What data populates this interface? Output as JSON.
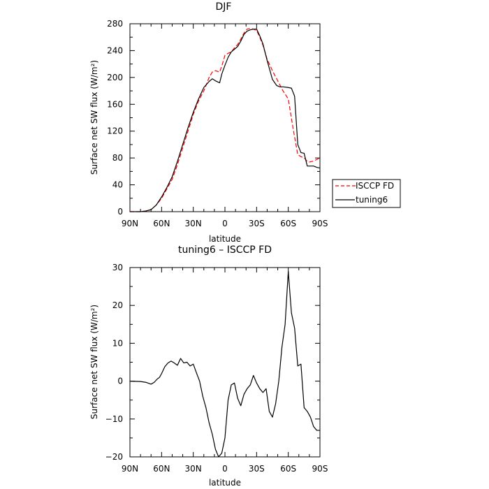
{
  "chart_data": [
    {
      "type": "line",
      "title": "DJF",
      "xlabel": "latitude",
      "ylabel": "Surface net SW flux (W/m²)",
      "xlim": [
        90,
        -90
      ],
      "ylim": [
        0,
        280
      ],
      "x_ticks": [
        90,
        60,
        30,
        0,
        -30,
        -60,
        -90
      ],
      "x_tick_labels": [
        "90N",
        "60N",
        "30N",
        "0",
        "30S",
        "60S",
        "90S"
      ],
      "y_ticks": [
        0,
        40,
        80,
        120,
        160,
        200,
        240,
        280
      ],
      "y_tick_labels": [
        "0",
        "40",
        "80",
        "120",
        "160",
        "200",
        "240",
        "280"
      ],
      "grid": false,
      "legend_position": "right",
      "series": [
        {
          "name": "ISCCP FD",
          "color": "#ff0000",
          "dash": true,
          "x": [
            90,
            85,
            80,
            75,
            70,
            65,
            60,
            55,
            50,
            45,
            40,
            35,
            30,
            25,
            20,
            15,
            12,
            9,
            5,
            2,
            0,
            -3,
            -6,
            -9,
            -12,
            -15,
            -18,
            -21,
            -24,
            -27,
            -30,
            -33,
            -36,
            -40,
            -45,
            -50,
            -55,
            -60,
            -65,
            -69,
            -72,
            -75,
            -78,
            -80,
            -83,
            -86,
            -90
          ],
          "y": [
            0,
            0,
            0,
            1,
            3,
            10,
            20,
            34,
            48,
            70,
            95,
            120,
            145,
            165,
            180,
            200,
            208,
            210,
            208,
            222,
            233,
            236,
            238,
            244,
            249,
            257,
            266,
            272,
            273,
            272,
            270,
            260,
            248,
            227,
            210,
            195,
            180,
            168,
            120,
            85,
            82,
            80,
            75,
            74,
            75,
            77,
            80
          ]
        },
        {
          "name": "tuning6",
          "color": "#000000",
          "dash": false,
          "x": [
            90,
            85,
            80,
            75,
            70,
            65,
            60,
            55,
            50,
            45,
            40,
            35,
            30,
            25,
            20,
            15,
            12,
            9,
            5,
            3,
            0,
            -3,
            -6,
            -9,
            -12,
            -15,
            -18,
            -21,
            -24,
            -27,
            -30,
            -33,
            -36,
            -40,
            -45,
            -49,
            -52,
            -55,
            -60,
            -63,
            -66,
            -69,
            -72,
            -75,
            -78,
            -80,
            -84,
            -87,
            -90
          ],
          "y": [
            0,
            0,
            0,
            1,
            3,
            10,
            22,
            36,
            52,
            75,
            100,
            125,
            148,
            168,
            185,
            194,
            198,
            195,
            192,
            205,
            218,
            230,
            238,
            242,
            246,
            254,
            264,
            269,
            271,
            272,
            272,
            262,
            250,
            225,
            197,
            188,
            186,
            186,
            185,
            184,
            172,
            100,
            88,
            87,
            68,
            68,
            68,
            66,
            65
          ]
        }
      ]
    },
    {
      "type": "line",
      "title": "tuning6 – ISCCP FD",
      "xlabel": "latitude",
      "ylabel": "Surface net SW flux (W/m²)",
      "xlim": [
        90,
        -90
      ],
      "ylim": [
        -20,
        30
      ],
      "x_ticks": [
        90,
        60,
        30,
        0,
        -30,
        -60,
        -90
      ],
      "x_tick_labels": [
        "90N",
        "60N",
        "30N",
        "0",
        "30S",
        "60S",
        "90S"
      ],
      "y_ticks": [
        -20,
        -10,
        0,
        10,
        20,
        30
      ],
      "y_tick_labels": [
        "−20",
        "−10",
        "0",
        "10",
        "20",
        "30"
      ],
      "grid": false,
      "series": [
        {
          "color": "#000000",
          "dash": false,
          "x": [
            90,
            80,
            75,
            70,
            67,
            64,
            62,
            60,
            57,
            54,
            51,
            48,
            45,
            42,
            39,
            36,
            33,
            30,
            27,
            24,
            21,
            18,
            15,
            12,
            9,
            6,
            3,
            0,
            -3,
            -6,
            -9,
            -12,
            -15,
            -18,
            -21,
            -24,
            -27,
            -30,
            -33,
            -36,
            -39,
            -42,
            -45,
            -48,
            -51,
            -54,
            -57,
            -60,
            -63,
            -66,
            -69,
            -72,
            -75,
            -78,
            -81,
            -84,
            -87,
            -90
          ],
          "y": [
            0,
            -0.1,
            -0.3,
            -0.8,
            -0.3,
            0.6,
            1.0,
            2.0,
            3.8,
            4.8,
            5.3,
            4.8,
            4.2,
            6.0,
            4.8,
            5.0,
            4.0,
            4.5,
            2.2,
            0.0,
            -4.0,
            -7.0,
            -11.0,
            -14.0,
            -18.0,
            -20.0,
            -19.0,
            -15.0,
            -5.0,
            -1.0,
            -0.5,
            -4.5,
            -6.5,
            -3.5,
            -2.0,
            -1.0,
            1.5,
            -0.5,
            -2.0,
            -3.0,
            -2.0,
            -8.0,
            -9.5,
            -6.0,
            0.0,
            9.0,
            15.0,
            29.0,
            18.0,
            14.0,
            4.0,
            4.5,
            -7.0,
            -8.0,
            -9.5,
            -12.0,
            -13.0,
            -13.0
          ]
        }
      ]
    }
  ]
}
